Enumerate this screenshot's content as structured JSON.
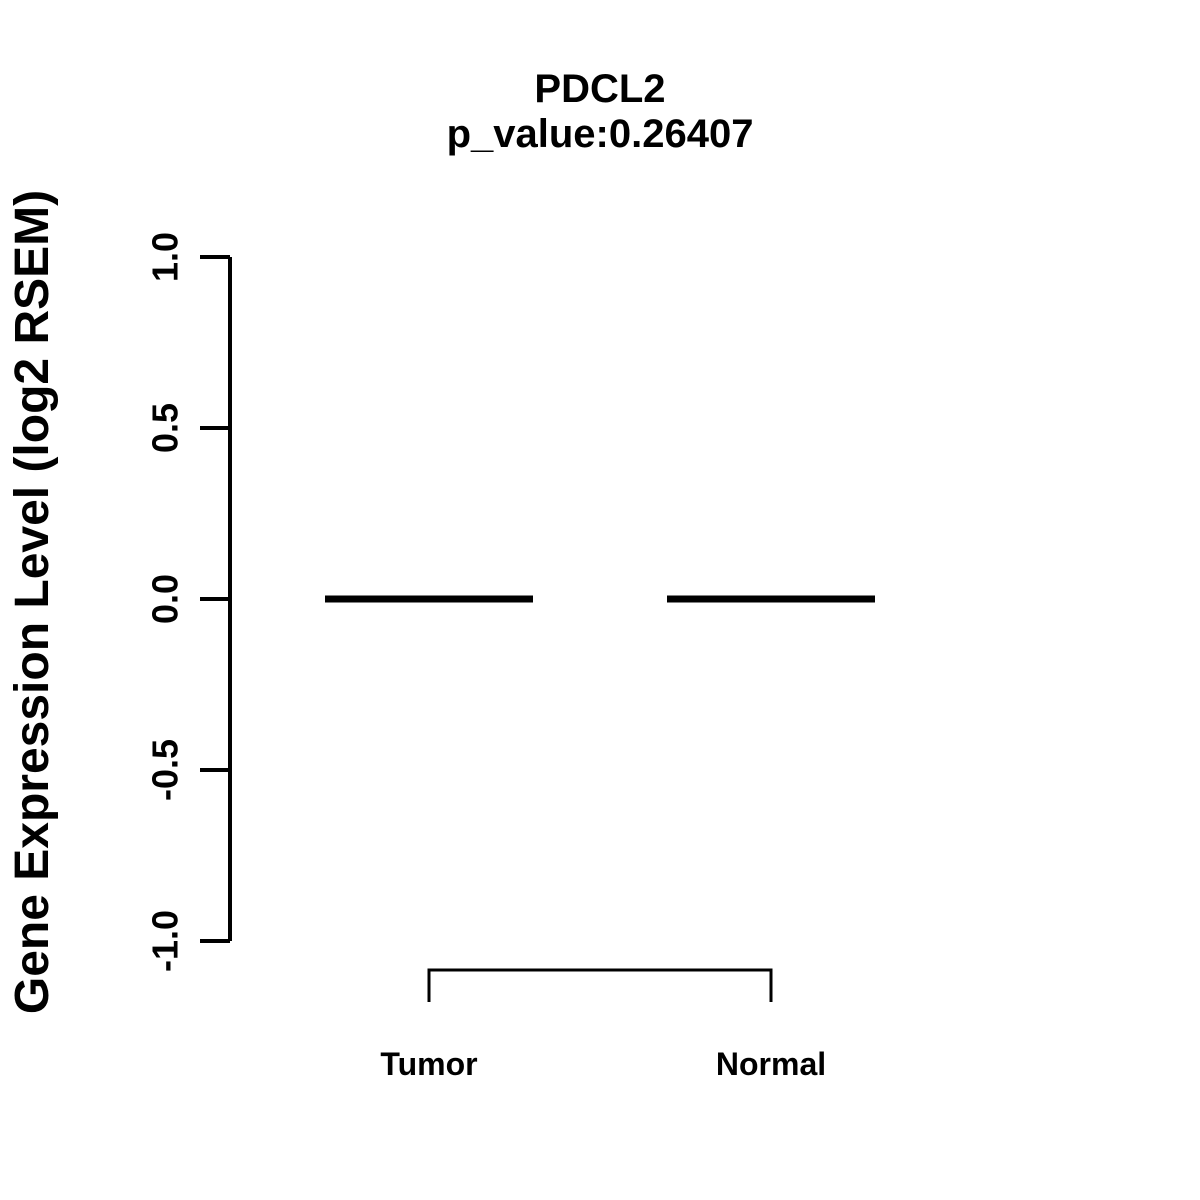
{
  "chart_data": {
    "type": "boxplot",
    "title": "PDCL2",
    "subtitle": "p_value:0.26407",
    "p_value": 0.26407,
    "ylabel": "Gene Expression Level (log2 RSEM)",
    "categories": [
      "Tumor",
      "Normal"
    ],
    "series": [
      {
        "name": "Tumor",
        "median": 0.0,
        "q1": 0.0,
        "q3": 0.0,
        "min": 0.0,
        "max": 0.0
      },
      {
        "name": "Normal",
        "median": 0.0,
        "q1": 0.0,
        "q3": 0.0,
        "min": 0.0,
        "max": 0.0
      }
    ],
    "yticks": [
      {
        "value": 1.0,
        "label": "1.0"
      },
      {
        "value": 0.5,
        "label": "0.5"
      },
      {
        "value": 0.0,
        "label": "0.0"
      },
      {
        "value": -0.5,
        "label": "-0.5"
      },
      {
        "value": -1.0,
        "label": "-1.0"
      }
    ],
    "ylim": [
      -1.0,
      1.0
    ],
    "xlabel": "",
    "grid": false,
    "legend": "none",
    "comparison_bracket": {
      "from": "Tumor",
      "to": "Normal"
    },
    "colors": {
      "foreground": "#000000",
      "background": "#ffffff"
    }
  }
}
